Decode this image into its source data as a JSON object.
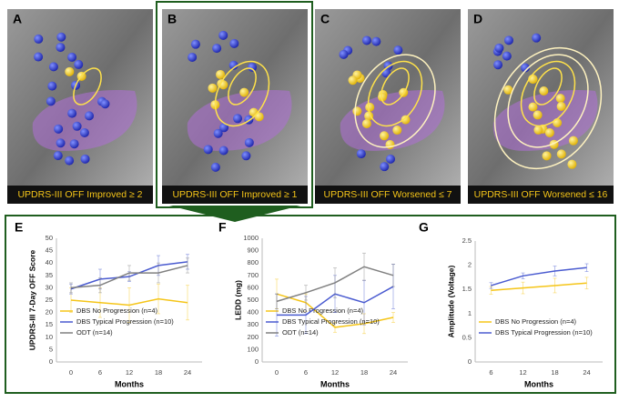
{
  "panels": [
    {
      "letter": "A",
      "caption": "UPDRS-III OFF Improved ≥ 2"
    },
    {
      "letter": "B",
      "caption": "UPDRS-III OFF Improved ≥ 1"
    },
    {
      "letter": "C",
      "caption": "UPDRS-III OFF Worsened ≤ 7"
    },
    {
      "letter": "D",
      "caption": "UPDRS-III OFF Worsened ≤ 16"
    }
  ],
  "chart_data": [
    {
      "type": "line",
      "letter": "E",
      "ylabel": "UPDRS-III 7-Day OFF Score",
      "xlabel": "Months",
      "x": [
        0,
        6,
        12,
        18,
        24
      ],
      "xlim": [
        -3,
        27
      ],
      "xticks": [
        0,
        6,
        12,
        18,
        24
      ],
      "ylim": [
        0,
        50
      ],
      "yticks": [
        0,
        5,
        10,
        15,
        20,
        25,
        30,
        35,
        40,
        45,
        50
      ],
      "grid": false,
      "legend": "lower left",
      "series": [
        {
          "name": "DBS No Progression (n=4)",
          "color": "#f5c518",
          "values": [
            25,
            24,
            23,
            25.5,
            24
          ],
          "errors": [
            5,
            6,
            7,
            6,
            7
          ]
        },
        {
          "name": "DBS Typical Progression (n=10)",
          "color": "#4a5bd0",
          "values": [
            29.5,
            33.5,
            34.5,
            39,
            40.5
          ],
          "errors": [
            2,
            4,
            2,
            4,
            3
          ]
        },
        {
          "name": "ODT (n=14)",
          "color": "#808080",
          "values": [
            30,
            31,
            36,
            36,
            39
          ],
          "errors": [
            2,
            3,
            3,
            4,
            3
          ]
        }
      ]
    },
    {
      "type": "line",
      "letter": "F",
      "ylabel": "LEDD (mg)",
      "xlabel": "Months",
      "x": [
        0,
        6,
        12,
        18,
        24
      ],
      "xlim": [
        -3,
        27
      ],
      "xticks": [
        0,
        6,
        12,
        18,
        24
      ],
      "ylim": [
        0,
        1000
      ],
      "yticks": [
        0,
        100,
        200,
        300,
        400,
        500,
        600,
        700,
        800,
        900,
        1000
      ],
      "grid": false,
      "legend": "lower left",
      "series": [
        {
          "name": "DBS No Progression (n=4)",
          "color": "#f5c518",
          "values": [
            550,
            480,
            280,
            310,
            360
          ],
          "errors": [
            120,
            70,
            40,
            80,
            40
          ]
        },
        {
          "name": "DBS Typical Progression (n=10)",
          "color": "#4a5bd0",
          "values": [
            380,
            380,
            550,
            480,
            610
          ],
          "errors": [
            170,
            150,
            150,
            180,
            180
          ]
        },
        {
          "name": "ODT (n=14)",
          "color": "#808080",
          "values": [
            490,
            560,
            640,
            770,
            700
          ],
          "errors": [
            60,
            60,
            120,
            110,
            90
          ]
        }
      ]
    },
    {
      "type": "line",
      "letter": "G",
      "ylabel": "Amplitude (Voltage)",
      "xlabel": "Months",
      "x": [
        6,
        12,
        18,
        24
      ],
      "xlim": [
        3,
        27
      ],
      "xticks": [
        6,
        12,
        18,
        24
      ],
      "ylim": [
        0,
        2.5
      ],
      "yticks": [
        0,
        0.5,
        1,
        1.5,
        2,
        2.5
      ],
      "grid": false,
      "legend": "lower left",
      "series": [
        {
          "name": "DBS No Progression (n=4)",
          "color": "#f5c518",
          "values": [
            1.48,
            1.53,
            1.58,
            1.63
          ],
          "errors": [
            0.08,
            0.12,
            0.15,
            0.12
          ]
        },
        {
          "name": "DBS Typical Progression (n=10)",
          "color": "#4a5bd0",
          "values": [
            1.58,
            1.78,
            1.88,
            1.95
          ],
          "errors": [
            0.06,
            0.06,
            0.1,
            0.08
          ]
        }
      ]
    }
  ]
}
